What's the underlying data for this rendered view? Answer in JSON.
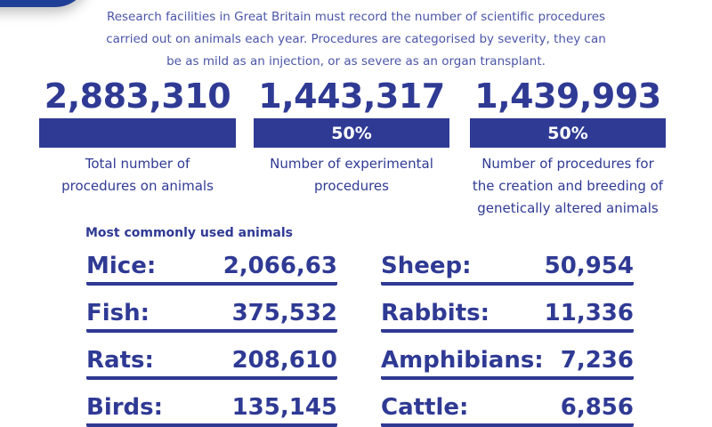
{
  "intro": [
    "Research facilities in Great Britain must record the number of scientific procedures",
    "carried out on animals each year. Procedures are categorised by severity, they can",
    "be as mild as an injection, or as severe as an organ transplant."
  ],
  "stats": [
    {
      "value": "2,883,310",
      "percent": "",
      "label": [
        "Total number of",
        "procedures on animals"
      ]
    },
    {
      "value": "1,443,317",
      "percent": "50%",
      "label": [
        "Number of experimental",
        "procedures"
      ]
    },
    {
      "value": "1,439,993",
      "percent": "50%",
      "label": [
        "Number of procedures for",
        "the creation and breeding of",
        "genetically altered animals"
      ]
    }
  ],
  "animals_heading": "Most commonly used animals",
  "animals_left": [
    {
      "name": "Mice:",
      "count": "2,066,63"
    },
    {
      "name": "Fish:",
      "count": "375,532"
    },
    {
      "name": "Rats:",
      "count": "208,610"
    },
    {
      "name": "Birds:",
      "count": "135,145"
    }
  ],
  "animals_right": [
    {
      "name": "Sheep:",
      "count": "50,954"
    },
    {
      "name": "Rabbits:",
      "count": "11,336"
    },
    {
      "name": "Amphibians:",
      "count": "7,236"
    },
    {
      "name": "Cattle:",
      "count": "6,856"
    }
  ],
  "colors": {
    "primary": "#2f3a94",
    "intro_text": "#4a55a8",
    "swoosh": "#1f3f96"
  }
}
